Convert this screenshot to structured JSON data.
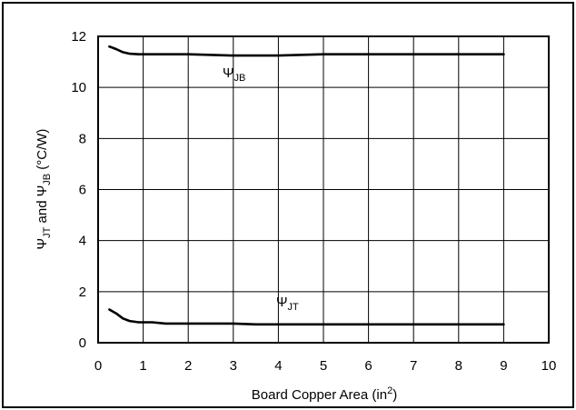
{
  "chart_data": {
    "type": "line",
    "xlabel": "Board Copper Area (in",
    "xlabel_sup": "2",
    "xlabel_end": ")",
    "ylabel": {
      "psi": "Ψ",
      "jt": "JT",
      "and": " and ",
      "jb": "JB",
      "unit": " (°C/W)"
    },
    "xlim": [
      0,
      10
    ],
    "ylim": [
      0,
      12
    ],
    "x_ticks": [
      "0",
      "1",
      "2",
      "3",
      "4",
      "5",
      "6",
      "7",
      "8",
      "9",
      "10"
    ],
    "y_ticks": [
      "0",
      "2",
      "4",
      "6",
      "8",
      "10",
      "12"
    ],
    "grid": true,
    "series": [
      {
        "name": "ΨJB",
        "label_main": "Ψ",
        "label_sub": "JB",
        "x": [
          0.25,
          0.4,
          0.55,
          0.7,
          0.9,
          1.2,
          2.0,
          3.0,
          4.0,
          5.0,
          6.0,
          7.0,
          8.0,
          9.0
        ],
        "y": [
          11.6,
          11.5,
          11.38,
          11.32,
          11.3,
          11.3,
          11.3,
          11.25,
          11.25,
          11.3,
          11.3,
          11.3,
          11.3,
          11.3
        ]
      },
      {
        "name": "ΨJT",
        "label_main": "Ψ",
        "label_sub": "JT",
        "x": [
          0.25,
          0.4,
          0.55,
          0.7,
          0.9,
          1.2,
          1.5,
          2.0,
          3.0,
          3.5,
          4.0,
          5.0,
          6.0,
          7.0,
          8.0,
          9.0
        ],
        "y": [
          1.3,
          1.15,
          0.95,
          0.85,
          0.8,
          0.8,
          0.75,
          0.75,
          0.75,
          0.72,
          0.72,
          0.72,
          0.72,
          0.72,
          0.72,
          0.72
        ]
      }
    ]
  }
}
